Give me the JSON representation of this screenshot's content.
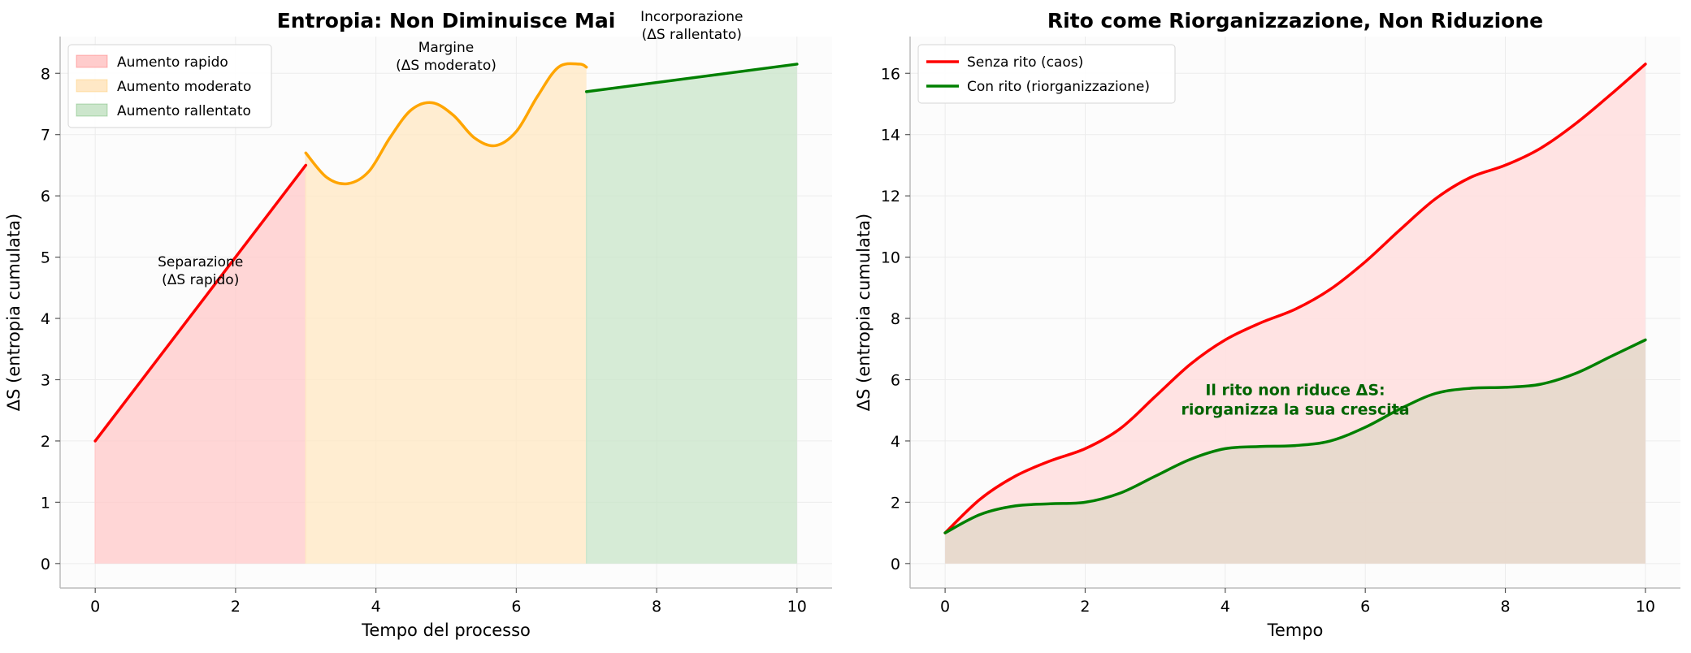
{
  "chart_data": [
    {
      "type": "area",
      "title": "Entropia: Non Diminuisce Mai",
      "xlabel": "Tempo del processo",
      "ylabel": "ΔS (entropia cumulata)",
      "xlim": [
        -0.5,
        10.5
      ],
      "ylim": [
        -0.4,
        8.6
      ],
      "xticks": [
        0,
        2,
        4,
        6,
        8,
        10
      ],
      "yticks": [
        0,
        1,
        2,
        3,
        4,
        5,
        6,
        7,
        8
      ],
      "grid": true,
      "legend_position": "top-left",
      "series": [
        {
          "name": "Aumento rapido",
          "color": "#ff0000",
          "fill": "#ffcccc",
          "x": [
            0,
            3
          ],
          "y": [
            2.0,
            6.5
          ]
        },
        {
          "name": "Aumento moderato",
          "color": "#ffa500",
          "fill": "#ffe8c6",
          "x": [
            3.0,
            3.3,
            3.6,
            3.9,
            4.2,
            4.5,
            4.8,
            5.1,
            5.4,
            5.7,
            6.0,
            6.3,
            6.6,
            6.9,
            7.0
          ],
          "y": [
            6.7,
            6.3,
            6.2,
            6.4,
            6.95,
            7.4,
            7.52,
            7.32,
            6.95,
            6.82,
            7.05,
            7.62,
            8.1,
            8.15,
            8.1
          ]
        },
        {
          "name": "Aumento rallentato",
          "color": "#008000",
          "fill": "#cce6cc",
          "x": [
            7,
            10
          ],
          "y": [
            7.7,
            8.15
          ]
        }
      ],
      "annotations": [
        {
          "lines": [
            "Separazione",
            "(ΔS rapido)"
          ],
          "x": 1.5,
          "y": 4.85
        },
        {
          "lines": [
            "Margine",
            "(ΔS moderato)"
          ],
          "x": 5.0,
          "y": 8.35
        },
        {
          "lines": [
            "Incorporazione",
            "(ΔS rallentato)"
          ],
          "x": 8.5,
          "y": 8.85
        }
      ]
    },
    {
      "type": "area",
      "title": "Rito come Riorganizzazione, Non Riduzione",
      "xlabel": "Tempo",
      "ylabel": "ΔS (entropia cumulata)",
      "xlim": [
        -0.5,
        10.5
      ],
      "ylim": [
        -0.8,
        17.2
      ],
      "xticks": [
        0,
        2,
        4,
        6,
        8,
        10
      ],
      "yticks": [
        0,
        2,
        4,
        6,
        8,
        10,
        12,
        14,
        16
      ],
      "grid": true,
      "legend_position": "top-left",
      "series": [
        {
          "name": "Senza rito (caos)",
          "color": "#ff0000",
          "fill": "#ffe0e0",
          "x": [
            0,
            0.5,
            1,
            1.5,
            2,
            2.5,
            3,
            3.5,
            4,
            4.5,
            5,
            5.5,
            6,
            6.5,
            7,
            7.5,
            8,
            8.5,
            9,
            9.5,
            10
          ],
          "y": [
            1.0,
            2.1,
            2.85,
            3.35,
            3.75,
            4.4,
            5.45,
            6.5,
            7.3,
            7.85,
            8.3,
            8.95,
            9.85,
            10.9,
            11.9,
            12.6,
            13.0,
            13.55,
            14.35,
            15.3,
            16.3
          ]
        },
        {
          "name": "Con rito (riorganizzazione)",
          "color": "#008000",
          "fill": "#e2d7c8",
          "x": [
            0,
            0.5,
            1,
            1.5,
            2,
            2.5,
            3,
            3.5,
            4,
            4.5,
            5,
            5.5,
            6,
            6.5,
            7,
            7.5,
            8,
            8.5,
            9,
            9.5,
            10
          ],
          "y": [
            1.0,
            1.6,
            1.88,
            1.95,
            2.0,
            2.3,
            2.85,
            3.4,
            3.75,
            3.82,
            3.85,
            4.0,
            4.45,
            5.05,
            5.55,
            5.72,
            5.75,
            5.85,
            6.2,
            6.75,
            7.3
          ]
        }
      ],
      "annotations": [
        {
          "lines": [
            "Il rito non riduce ΔS:",
            "riorganizza la sua crescita"
          ],
          "x": 5.0,
          "y": 5.5,
          "color": "#006400",
          "bold": true
        }
      ]
    }
  ]
}
